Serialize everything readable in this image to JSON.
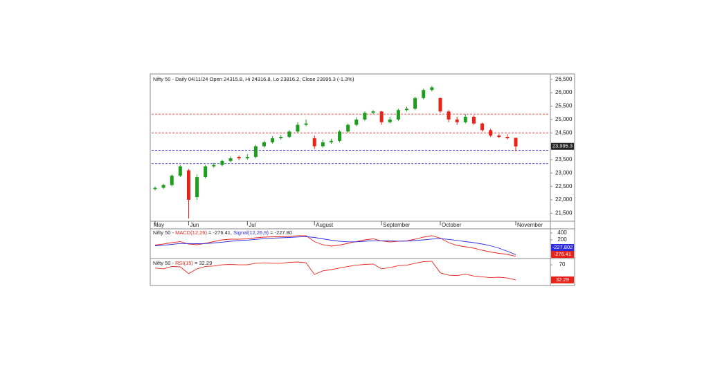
{
  "chart_data": [
    {
      "type": "candlestick",
      "title": "Nifty 50 - Daily 04/11/24 Open 24315.8, Hi 24316.8, Lo 23816.2, Close 23995.3 (-1.3%)",
      "categories": [
        "May",
        null,
        null,
        null,
        "Jun",
        null,
        null,
        null,
        null,
        null,
        null,
        "Jul",
        null,
        null,
        null,
        null,
        null,
        null,
        null,
        "August",
        null,
        null,
        null,
        null,
        null,
        null,
        null,
        "September",
        null,
        null,
        null,
        null,
        null,
        null,
        "October",
        null,
        null,
        null,
        null,
        null,
        null,
        null,
        null,
        "November"
      ],
      "open": [
        22400,
        22450,
        22550,
        22900,
        23100,
        22100,
        22850,
        23250,
        23300,
        23450,
        23600,
        23550,
        23600,
        24000,
        24150,
        24300,
        24350,
        24550,
        24800,
        24300,
        24000,
        24150,
        24200,
        24550,
        24800,
        25000,
        25250,
        25300,
        24900,
        25000,
        25350,
        25400,
        25800,
        26100,
        25800,
        25300,
        25000,
        24900,
        25100,
        24850,
        24600,
        24400,
        24350,
        24315.8
      ],
      "high": [
        22500,
        22600,
        22950,
        23300,
        23150,
        22950,
        23300,
        23380,
        23500,
        23620,
        23650,
        23700,
        24050,
        24200,
        24380,
        24420,
        24600,
        24900,
        25000,
        24400,
        24250,
        24280,
        24600,
        24850,
        25080,
        25300,
        25350,
        25320,
        25100,
        25400,
        25480,
        25850,
        26150,
        26250,
        25820,
        25350,
        25100,
        25200,
        25150,
        24880,
        24650,
        24450,
        24450,
        24316.8
      ],
      "low": [
        22350,
        22400,
        22500,
        22850,
        21300,
        22000,
        22800,
        23200,
        23250,
        23400,
        23480,
        23500,
        23550,
        23950,
        24100,
        24250,
        24300,
        24500,
        24750,
        23900,
        23950,
        24100,
        24150,
        24500,
        24750,
        24950,
        25200,
        24800,
        24850,
        24950,
        25300,
        25350,
        25750,
        26050,
        25250,
        24900,
        24800,
        24850,
        24800,
        24550,
        24350,
        24300,
        24250,
        23816.2
      ],
      "close": [
        22450,
        22550,
        22900,
        23250,
        22000,
        22850,
        23250,
        23300,
        23450,
        23550,
        23550,
        23600,
        24000,
        24150,
        24300,
        24350,
        24550,
        24800,
        24850,
        24000,
        24150,
        24200,
        24550,
        24800,
        25000,
        25250,
        25300,
        24900,
        25000,
        25350,
        25400,
        25800,
        26100,
        26200,
        25300,
        25000,
        24900,
        25100,
        24850,
        24600,
        24400,
        24350,
        24300,
        23995.3
      ],
      "up_color": "#1e9e1e",
      "down_color": "#e8231a",
      "ylim": [
        21200,
        26700
      ],
      "yticks": [
        {
          "value": 21500,
          "label": "21,500"
        },
        {
          "value": 22000,
          "label": "22,000"
        },
        {
          "value": 22500,
          "label": "22,500"
        },
        {
          "value": 23000,
          "label": "23,000"
        },
        {
          "value": 23500,
          "label": "23,500"
        },
        {
          "value": 24000,
          "label": "24,000"
        },
        {
          "value": 24500,
          "label": "24,500"
        },
        {
          "value": 25000,
          "label": "25,000"
        },
        {
          "value": 25500,
          "label": "25,500"
        },
        {
          "value": 26000,
          "label": "26,000"
        },
        {
          "value": 26500,
          "label": "26,500"
        }
      ],
      "hlines": [
        {
          "value": 25200,
          "color": "#e8231a"
        },
        {
          "value": 24500,
          "color": "#e8231a"
        },
        {
          "value": 23850,
          "color": "#2a2ae0"
        },
        {
          "value": 23350,
          "color": "#2a2ae0"
        }
      ],
      "last_label": {
        "value": 23995.3,
        "label": "23,995.3"
      }
    },
    {
      "type": "line",
      "title": "Nifty 50 -",
      "series": [
        {
          "name": "MACD(12,26)",
          "legend_value": "= -276.41,",
          "color": "#e8231a",
          "values": [
            50,
            80,
            120,
            150,
            80,
            60,
            100,
            150,
            200,
            220,
            220,
            230,
            260,
            280,
            290,
            290,
            300,
            320,
            320,
            150,
            60,
            20,
            50,
            100,
            150,
            200,
            230,
            170,
            140,
            160,
            170,
            220,
            280,
            320,
            250,
            120,
            40,
            0,
            -40,
            -100,
            -150,
            -190,
            -220,
            -276.41
          ],
          "last_label": {
            "value": -276.41,
            "label": "-276.41"
          }
        },
        {
          "name": "Signal(12,26,9)",
          "legend_value": "= -227.80",
          "color": "#2a2ae0",
          "values": [
            30,
            45,
            70,
            95,
            95,
            90,
            95,
            110,
            135,
            160,
            180,
            195,
            215,
            235,
            250,
            260,
            270,
            285,
            295,
            270,
            230,
            190,
            160,
            145,
            145,
            160,
            175,
            175,
            170,
            165,
            165,
            180,
            200,
            225,
            235,
            215,
            185,
            150,
            120,
            80,
            30,
            -40,
            -130,
            -227.8
          ],
          "last_label": {
            "value": -227.802,
            "label": "-227.802"
          }
        }
      ],
      "ylim": [
        -320,
        520
      ],
      "yticks": [
        400,
        200
      ]
    },
    {
      "type": "line",
      "title": "Nifty 50 -",
      "series": [
        {
          "name": "RSI(15)",
          "legend_value": "= 32.29",
          "color": "#e8231a",
          "values": [
            62,
            60,
            66,
            65,
            48,
            60,
            66,
            67,
            70,
            71,
            70,
            70,
            74,
            75,
            74,
            74,
            76,
            77,
            75,
            46,
            55,
            58,
            62,
            66,
            69,
            71,
            72,
            60,
            63,
            68,
            69,
            74,
            78,
            79,
            50,
            44,
            43,
            47,
            42,
            40,
            38,
            39,
            37,
            32.29
          ],
          "last_label": {
            "value": 32.29,
            "label": "32.29"
          }
        }
      ],
      "ylim": [
        20,
        84
      ],
      "yticks": [
        70
      ]
    }
  ]
}
